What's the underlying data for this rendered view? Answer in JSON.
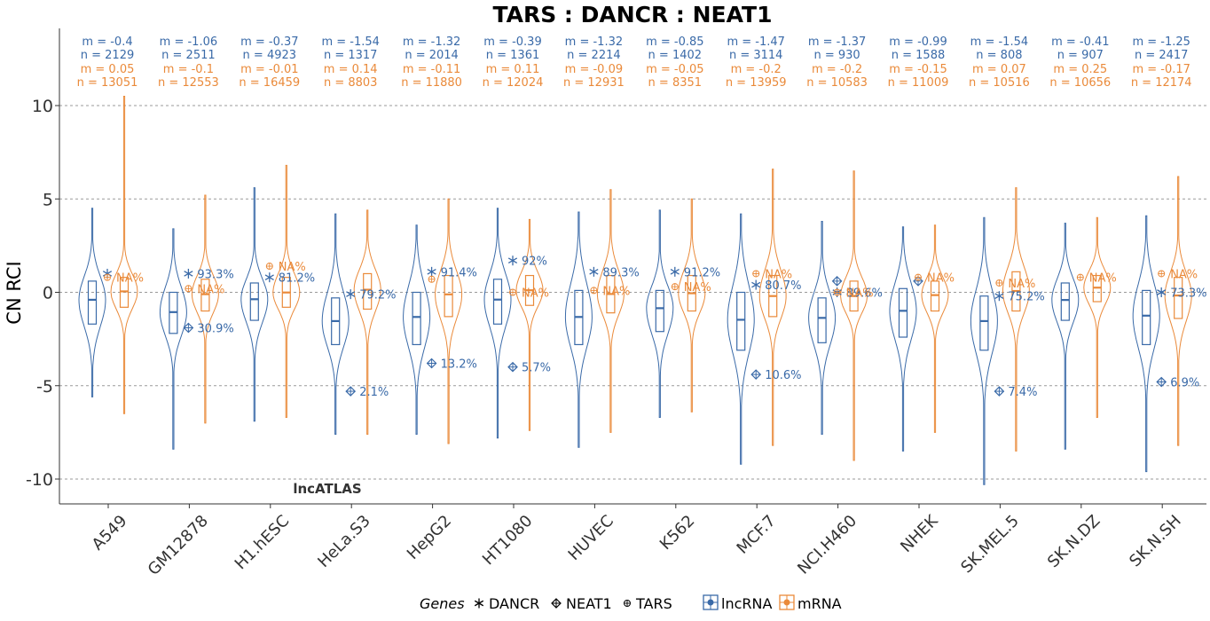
{
  "chart_data": {
    "type": "violin",
    "title": "TARS : DANCR : NEAT1",
    "ylabel": "CN RCI",
    "xlabel": "",
    "ylim": [
      -11,
      14
    ],
    "yticks": [
      10,
      5,
      0,
      -5,
      -10
    ],
    "ytick_labels": [
      "10",
      "5",
      "0",
      "-5",
      "-10"
    ],
    "grid": "dashed horizontal at y ticks",
    "watermark": "lncATLAS",
    "colors": {
      "lncRNA": "#3a6aa8",
      "mRNA": "#ea8a3a"
    },
    "categories": [
      "A549",
      "GM12878",
      "H1.hESC",
      "HeLa.S3",
      "HepG2",
      "HT1080",
      "HUVEC",
      "K562",
      "MCF.7",
      "NCI.H460",
      "NHEK",
      "SK.MEL.5",
      "SK.N.DZ",
      "SK.N.SH"
    ],
    "series": [
      {
        "name": "lncRNA",
        "stats": [
          {
            "m": "m = -0.4",
            "n": "n = 2129",
            "q1": -1.7,
            "median": -0.4,
            "q3": 0.6,
            "min": -5.6,
            "max": 4.5
          },
          {
            "m": "m = -1.06",
            "n": "n = 2511",
            "q1": -2.2,
            "median": -1.06,
            "q3": 0.0,
            "min": -8.4,
            "max": 3.4
          },
          {
            "m": "m = -0.37",
            "n": "n = 4923",
            "q1": -1.5,
            "median": -0.37,
            "q3": 0.5,
            "min": -6.9,
            "max": 5.6
          },
          {
            "m": "m = -1.54",
            "n": "n = 1317",
            "q1": -2.8,
            "median": -1.54,
            "q3": -0.3,
            "min": -7.6,
            "max": 4.2
          },
          {
            "m": "m = -1.32",
            "n": "n = 2014",
            "q1": -2.8,
            "median": -1.32,
            "q3": -0.0,
            "min": -7.6,
            "max": 3.6
          },
          {
            "m": "m = -0.39",
            "n": "n = 1361",
            "q1": -1.7,
            "median": -0.39,
            "q3": 0.7,
            "min": -7.8,
            "max": 4.5
          },
          {
            "m": "m = -1.32",
            "n": "n = 2214",
            "q1": -2.8,
            "median": -1.32,
            "q3": 0.1,
            "min": -8.3,
            "max": 4.3
          },
          {
            "m": "m = -0.85",
            "n": "n = 1402",
            "q1": -2.1,
            "median": -0.85,
            "q3": 0.1,
            "min": -6.7,
            "max": 4.4
          },
          {
            "m": "m = -1.47",
            "n": "n = 3114",
            "q1": -3.1,
            "median": -1.47,
            "q3": -0.0,
            "min": -9.2,
            "max": 4.2
          },
          {
            "m": "m = -1.37",
            "n": "n = 930",
            "q1": -2.7,
            "median": -1.37,
            "q3": -0.3,
            "min": -7.6,
            "max": 3.8
          },
          {
            "m": "m = -0.99",
            "n": "n = 1588",
            "q1": -2.4,
            "median": -0.99,
            "q3": 0.2,
            "min": -8.5,
            "max": 3.5
          },
          {
            "m": "m = -1.54",
            "n": "n = 808",
            "q1": -3.1,
            "median": -1.54,
            "q3": -0.2,
            "min": -10.3,
            "max": 4.0
          },
          {
            "m": "m = -0.41",
            "n": "n = 907",
            "q1": -1.5,
            "median": -0.41,
            "q3": 0.5,
            "min": -8.4,
            "max": 3.7
          },
          {
            "m": "m = -1.25",
            "n": "n = 2417",
            "q1": -2.8,
            "median": -1.25,
            "q3": 0.1,
            "min": -9.6,
            "max": 4.1
          }
        ]
      },
      {
        "name": "mRNA",
        "stats": [
          {
            "m": "m = 0.05",
            "n": "n = 13051",
            "q1": -0.8,
            "median": 0.05,
            "q3": 0.8,
            "min": -6.5,
            "max": 10.5
          },
          {
            "m": "m = -0.1",
            "n": "n = 12553",
            "q1": -1.0,
            "median": -0.1,
            "q3": 0.7,
            "min": -7.0,
            "max": 5.2
          },
          {
            "m": "m = -0.01",
            "n": "n = 16459",
            "q1": -0.8,
            "median": -0.01,
            "q3": 0.8,
            "min": -6.7,
            "max": 6.8
          },
          {
            "m": "m = 0.14",
            "n": "n = 8803",
            "q1": -0.9,
            "median": 0.14,
            "q3": 1.0,
            "min": -7.6,
            "max": 4.4
          },
          {
            "m": "m = -0.11",
            "n": "n = 11880",
            "q1": -1.3,
            "median": -0.11,
            "q3": 0.9,
            "min": -8.1,
            "max": 5.0
          },
          {
            "m": "m = 0.11",
            "n": "n = 12024",
            "q1": -0.7,
            "median": 0.11,
            "q3": 0.9,
            "min": -7.4,
            "max": 3.9
          },
          {
            "m": "m = -0.09",
            "n": "n = 12931",
            "q1": -1.1,
            "median": -0.09,
            "q3": 0.9,
            "min": -7.5,
            "max": 5.5
          },
          {
            "m": "m = -0.05",
            "n": "n = 8351",
            "q1": -1.0,
            "median": -0.05,
            "q3": 0.9,
            "min": -6.4,
            "max": 5.0
          },
          {
            "m": "m = -0.2",
            "n": "n = 13959",
            "q1": -1.3,
            "median": -0.2,
            "q3": 0.9,
            "min": -8.2,
            "max": 6.6
          },
          {
            "m": "m = -0.2",
            "n": "n = 10583",
            "q1": -1.0,
            "median": -0.2,
            "q3": 0.6,
            "min": -9.0,
            "max": 6.5
          },
          {
            "m": "m = -0.15",
            "n": "n = 11009",
            "q1": -1.0,
            "median": -0.15,
            "q3": 0.6,
            "min": -7.5,
            "max": 3.6
          },
          {
            "m": "m = 0.07",
            "n": "n = 10516",
            "q1": -1.0,
            "median": 0.07,
            "q3": 1.1,
            "min": -8.5,
            "max": 5.6
          },
          {
            "m": "m = 0.25",
            "n": "n = 10656",
            "q1": -0.5,
            "median": 0.25,
            "q3": 0.9,
            "min": -6.7,
            "max": 4.0
          },
          {
            "m": "m = -0.17",
            "n": "n = 12174",
            "q1": -1.4,
            "median": -0.17,
            "q3": 0.8,
            "min": -8.2,
            "max": 6.2
          }
        ]
      }
    ],
    "genes": [
      {
        "name": "DANCR",
        "symbol": "asterisk",
        "points": [
          {
            "series": "lncRNA",
            "y": 1.0,
            "label": ""
          },
          {
            "series": "lncRNA",
            "y": 1.0,
            "label": "93.3%"
          },
          {
            "series": "lncRNA",
            "y": 0.8,
            "label": "81.2%"
          },
          {
            "series": "lncRNA",
            "y": -0.1,
            "label": "79.2%"
          },
          {
            "series": "lncRNA",
            "y": 1.1,
            "label": "91.4%"
          },
          {
            "series": "lncRNA",
            "y": 1.7,
            "label": "92%"
          },
          {
            "series": "lncRNA",
            "y": 1.1,
            "label": "89.3%"
          },
          {
            "series": "lncRNA",
            "y": 1.1,
            "label": "91.2%"
          },
          {
            "series": "lncRNA",
            "y": 0.4,
            "label": "80.7%"
          },
          {
            "series": "lncRNA",
            "y": 0.0,
            "label": "89.6%"
          },
          {
            "series": "lncRNA",
            "y": null,
            "label": ""
          },
          {
            "series": "lncRNA",
            "y": -0.2,
            "label": "75.2%"
          },
          {
            "series": "lncRNA",
            "y": null,
            "label": ""
          },
          {
            "series": "lncRNA",
            "y": 0.0,
            "label": "73.3%"
          }
        ]
      },
      {
        "name": "NEAT1",
        "symbol": "diamond-plus",
        "points": [
          {
            "series": "lncRNA",
            "y": null,
            "label": ""
          },
          {
            "series": "lncRNA",
            "y": -1.9,
            "label": "30.9%"
          },
          {
            "series": "lncRNA",
            "y": null,
            "label": ""
          },
          {
            "series": "lncRNA",
            "y": -5.3,
            "label": "2.1%"
          },
          {
            "series": "lncRNA",
            "y": -3.8,
            "label": "13.2%"
          },
          {
            "series": "lncRNA",
            "y": -4.0,
            "label": "5.7%"
          },
          {
            "series": "lncRNA",
            "y": null,
            "label": ""
          },
          {
            "series": "lncRNA",
            "y": null,
            "label": ""
          },
          {
            "series": "lncRNA",
            "y": -4.4,
            "label": "10.6%"
          },
          {
            "series": "lncRNA",
            "y": 0.6,
            "label": ""
          },
          {
            "series": "lncRNA",
            "y": 0.6,
            "label": ""
          },
          {
            "series": "lncRNA",
            "y": -5.3,
            "label": "7.4%"
          },
          {
            "series": "lncRNA",
            "y": null,
            "label": ""
          },
          {
            "series": "lncRNA",
            "y": -4.8,
            "label": "6.9%"
          }
        ]
      },
      {
        "name": "TARS",
        "symbol": "circle-plus",
        "points": [
          {
            "series": "mRNA",
            "y": 0.8,
            "label": "NA%"
          },
          {
            "series": "mRNA",
            "y": 0.2,
            "label": "NA%"
          },
          {
            "series": "mRNA",
            "y": 1.4,
            "label": "NA%"
          },
          {
            "series": "mRNA",
            "y": null,
            "label": ""
          },
          {
            "series": "mRNA",
            "y": 0.7,
            "label": ""
          },
          {
            "series": "mRNA",
            "y": 0.0,
            "label": "NA%"
          },
          {
            "series": "mRNA",
            "y": 0.1,
            "label": "NA%"
          },
          {
            "series": "mRNA",
            "y": 0.3,
            "label": "NA%"
          },
          {
            "series": "mRNA",
            "y": 1.0,
            "label": "NA%"
          },
          {
            "series": "mRNA",
            "y": 0.0,
            "label": "NA%"
          },
          {
            "series": "mRNA",
            "y": 0.8,
            "label": "NA%"
          },
          {
            "series": "mRNA",
            "y": 0.5,
            "label": "NA%"
          },
          {
            "series": "mRNA",
            "y": 0.8,
            "label": "NA%"
          },
          {
            "series": "mRNA",
            "y": 1.0,
            "label": "NA%"
          }
        ]
      }
    ],
    "legend": {
      "title": "Genes",
      "genes": [
        "DANCR",
        "NEAT1",
        "TARS"
      ],
      "classes": [
        "lncRNA",
        "mRNA"
      ],
      "placement": "bottom"
    }
  }
}
